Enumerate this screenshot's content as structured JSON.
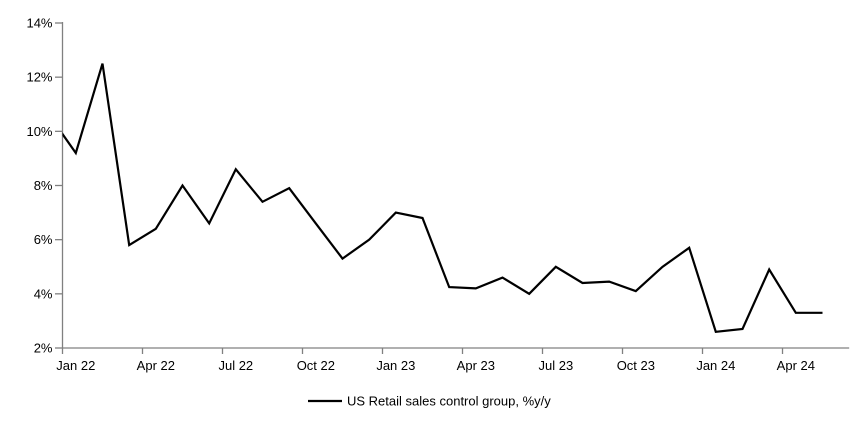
{
  "chart_data": {
    "type": "line",
    "title": "",
    "legend": {
      "label": "US Retail sales control group, %y/y",
      "position": "bottom-center"
    },
    "x": [
      "Dec 21",
      "Jan 22",
      "Feb 22",
      "Mar 22",
      "Apr 22",
      "May 22",
      "Jun 22",
      "Jul 22",
      "Aug 22",
      "Sep 22",
      "Oct 22",
      "Nov 22",
      "Dec 22",
      "Jan 23",
      "Feb 23",
      "Mar 23",
      "Apr 23",
      "May 23",
      "Jun 23",
      "Jul 23",
      "Aug 23",
      "Sep 23",
      "Oct 23",
      "Nov 23",
      "Dec 23",
      "Jan 24",
      "Feb 24",
      "Mar 24",
      "Apr 24",
      "May 24"
    ],
    "series": [
      {
        "name": "US Retail sales control group, %y/y",
        "color": "#000000",
        "values": [
          10.6,
          9.2,
          12.5,
          5.8,
          6.4,
          8.0,
          6.6,
          8.6,
          7.4,
          7.9,
          6.6,
          5.3,
          6.0,
          7.0,
          6.8,
          4.25,
          4.2,
          4.6,
          4.0,
          5.0,
          4.4,
          4.45,
          4.1,
          5.0,
          5.7,
          2.6,
          2.7,
          4.9,
          3.3,
          3.3
        ]
      }
    ],
    "xlabel": "",
    "ylabel": "",
    "x_tick_labels": [
      "Jan 22",
      "Apr 22",
      "Jul 22",
      "Oct 22",
      "Jan 23",
      "Apr 23",
      "Jul 23",
      "Oct 23",
      "Jan 24",
      "Apr 24"
    ],
    "x_tick_every_months": 3,
    "y_ticks": [
      "2%",
      "4%",
      "6%",
      "8%",
      "10%",
      "12%",
      "14%"
    ],
    "ylim": [
      2,
      14
    ],
    "y_step": 2,
    "grid": false,
    "axis_color": "#808080",
    "text_color": "#000000",
    "background": "#ffffff",
    "first_point_clipped_at_axis": true
  }
}
